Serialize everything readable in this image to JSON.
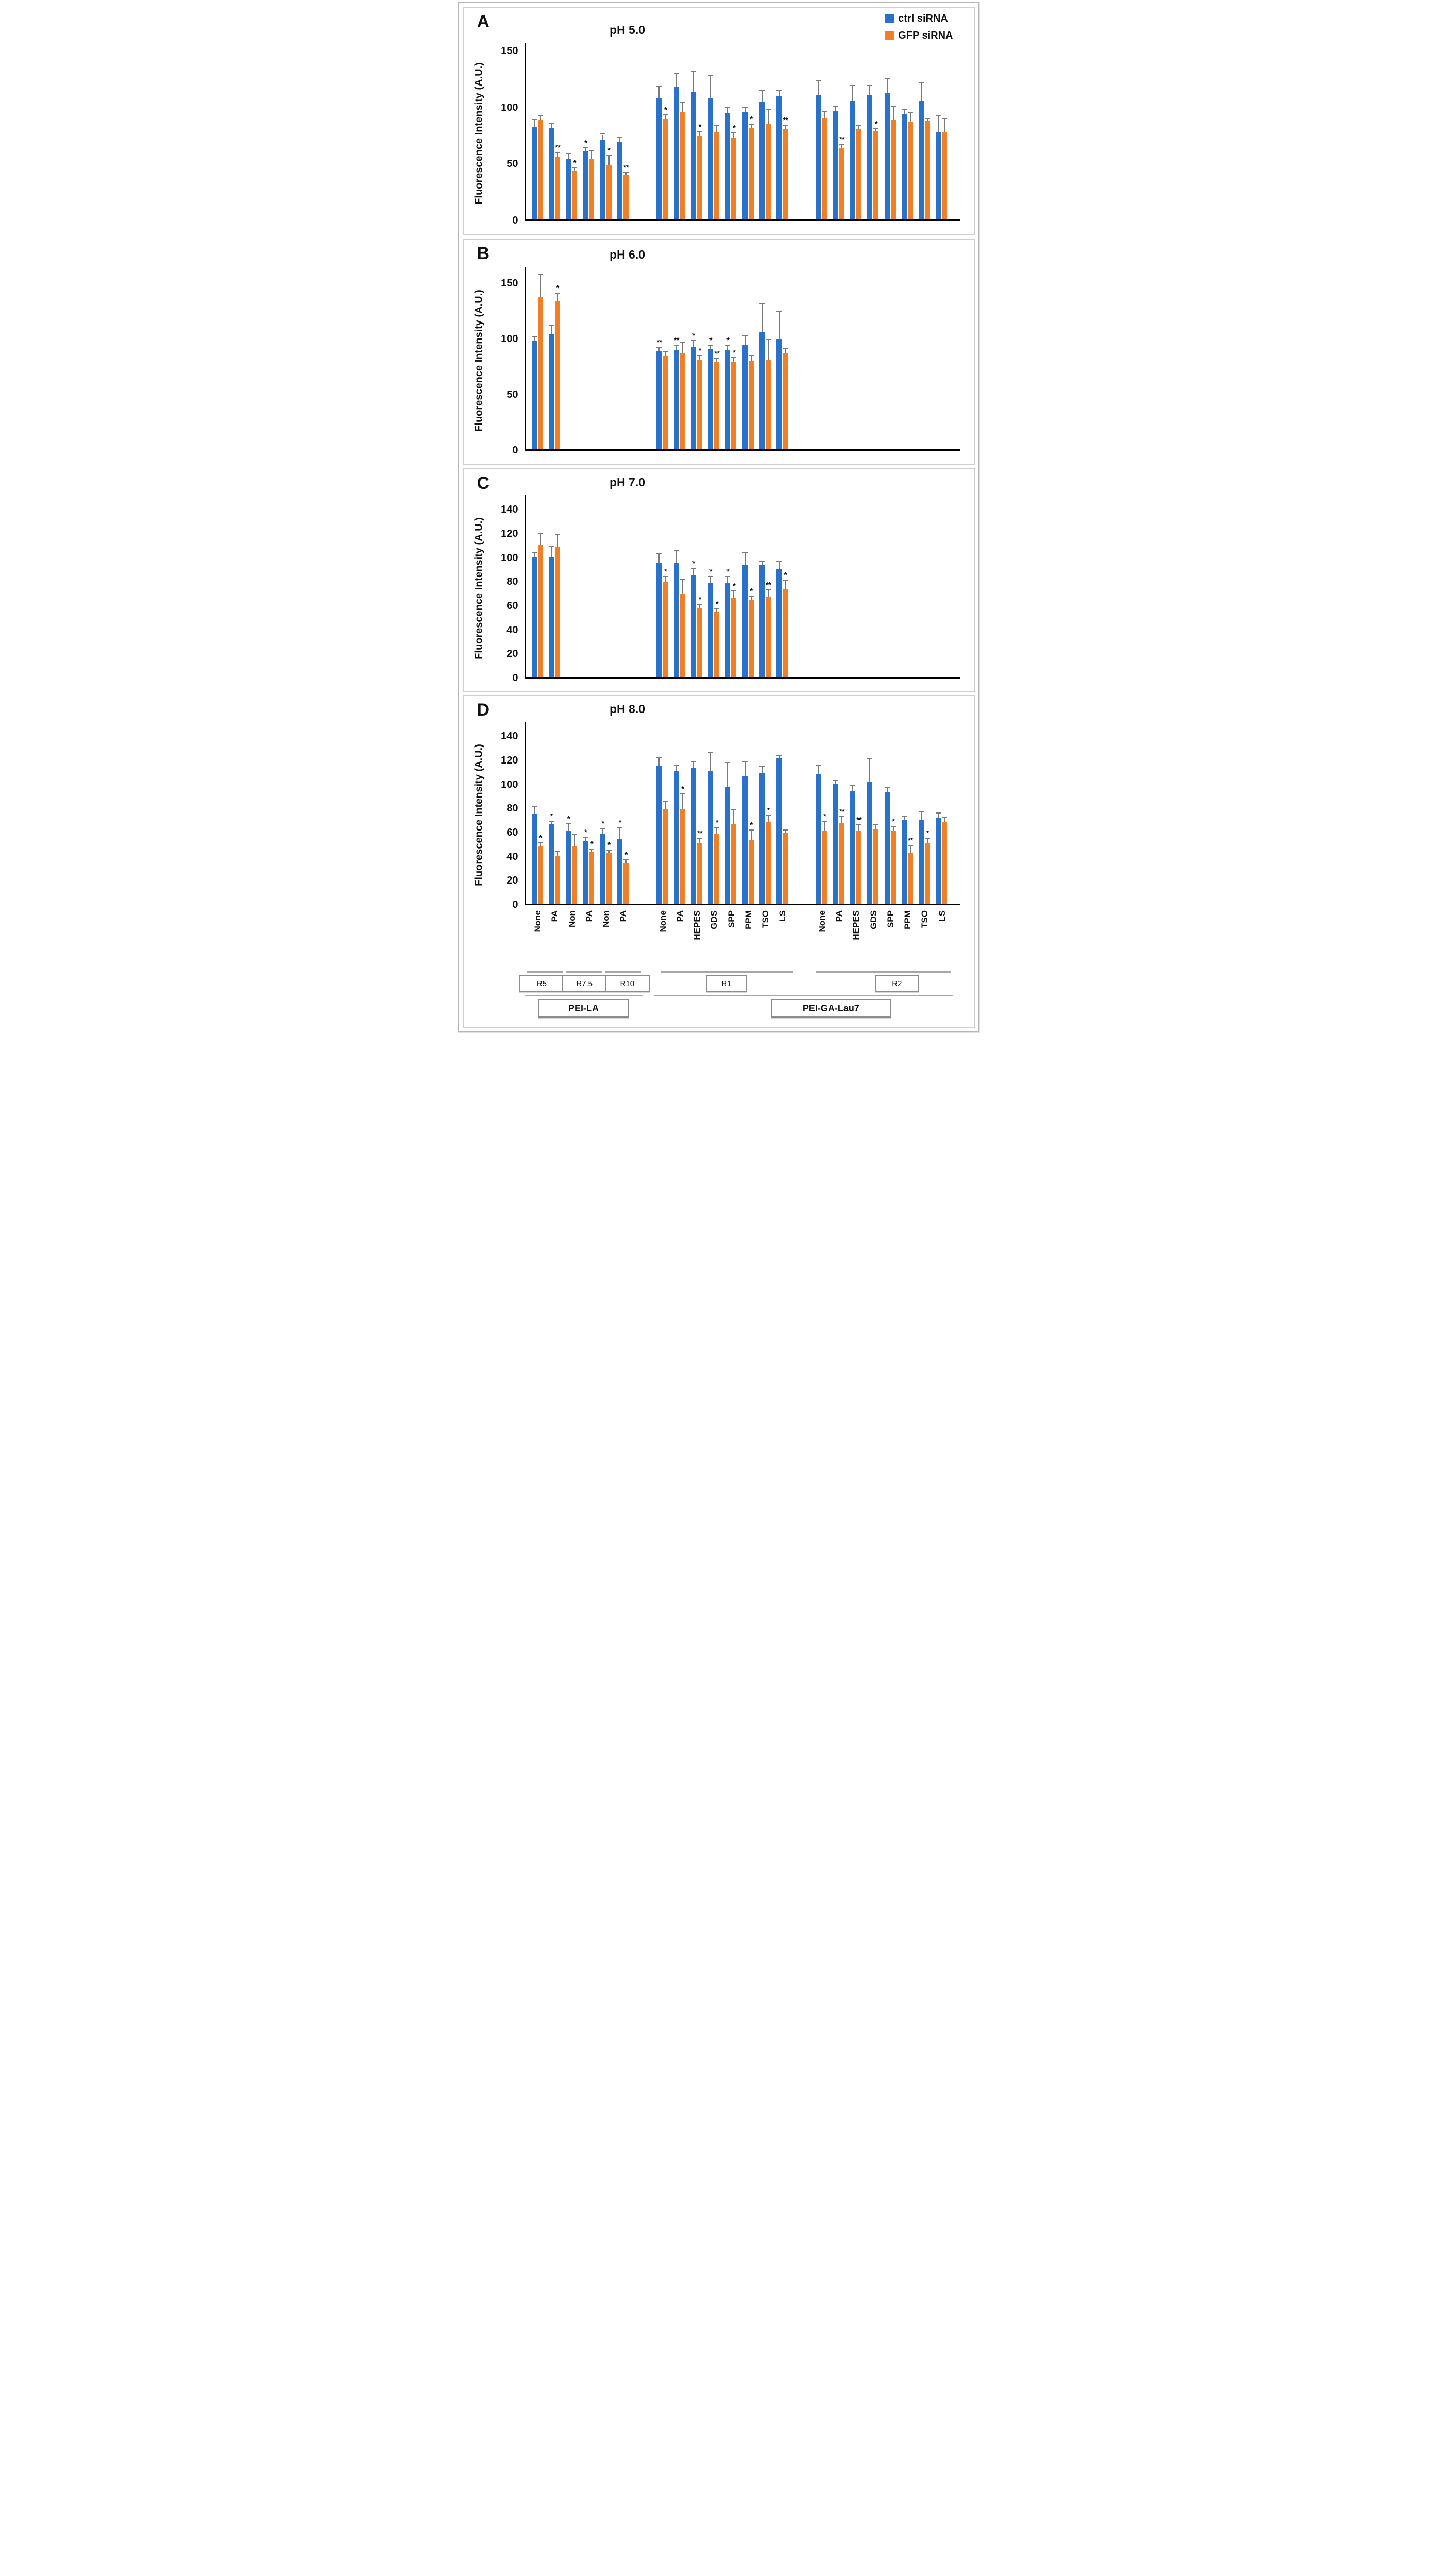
{
  "figure": {
    "description_visible_text_only": true
  },
  "legend": {
    "items": [
      {
        "label": "ctrl siRNA",
        "color": "#2a71c9"
      },
      {
        "label": "GFP siRNA",
        "color": "#f07f27"
      }
    ]
  },
  "colors": {
    "ctrl": "#2a71c9",
    "gfp": "#f07f27",
    "error_bar": "#7a7a7a",
    "axis": "#000000",
    "annotation_line": "#a6a6a6"
  },
  "chart_data": {
    "type": "bar",
    "grid": false,
    "legend_position": "top-right",
    "series": [
      "ctrl siRNA",
      "GFP siRNA"
    ],
    "ylabel": "Fluorescence Intensity (A.U.)",
    "group_categories": [
      [
        "None",
        "PA",
        "Non",
        "PA",
        "Non",
        "PA"
      ],
      [
        "None",
        "PA",
        "HEPES",
        "GDS",
        "SPP",
        "PPM",
        "TSO",
        "LS"
      ],
      [
        "None",
        "PA",
        "HEPES",
        "GDS",
        "SPP",
        "PPM",
        "TSO",
        "LS"
      ]
    ],
    "panels": [
      {
        "panel_letter": "A",
        "title": "pH 5.0",
        "ymax": 155,
        "yticks": [
          0,
          50,
          100,
          150
        ],
        "groups": [
          {
            "ctrl": {
              "values": [
                82,
                81,
                54,
                60,
                70,
                69
              ],
              "errors": [
                6,
                4,
                4,
                3,
                5,
                3
              ],
              "sig": [
                "",
                "",
                "",
                "*",
                "",
                ""
              ]
            },
            "gfp": {
              "values": [
                88,
                55,
                43,
                54,
                48,
                39
              ],
              "errors": [
                3,
                4,
                2,
                6,
                8,
                2
              ],
              "sig": [
                "",
                "**",
                "*",
                "",
                "*",
                "**"
              ]
            }
          },
          {
            "ctrl": {
              "values": [
                107,
                117,
                113,
                107,
                94,
                95,
                104,
                109
              ],
              "errors": [
                10,
                12,
                18,
                20,
                5,
                4,
                10,
                5
              ],
              "sig": [
                "",
                "",
                "",
                "",
                "",
                "",
                "",
                ""
              ]
            },
            "gfp": {
              "values": [
                89,
                95,
                74,
                77,
                72,
                81,
                85,
                80
              ],
              "errors": [
                3,
                8,
                3,
                6,
                4,
                3,
                12,
                3
              ],
              "sig": [
                "*",
                "",
                "*",
                "",
                "*",
                "*",
                "",
                "**"
              ]
            }
          },
          {
            "ctrl": {
              "values": [
                110,
                96,
                105,
                110,
                112,
                93,
                105,
                77
              ],
              "errors": [
                12,
                4,
                13,
                8,
                12,
                4,
                16,
                14
              ],
              "sig": [
                "",
                "",
                "",
                "",
                "",
                "",
                "",
                ""
              ]
            },
            "gfp": {
              "values": [
                90,
                63,
                80,
                78,
                88,
                86,
                87,
                77
              ],
              "errors": [
                5,
                3,
                3,
                2,
                12,
                8,
                2,
                12
              ],
              "sig": [
                "",
                "**",
                "",
                "*",
                "",
                "",
                "",
                ""
              ]
            }
          }
        ]
      },
      {
        "panel_letter": "B",
        "title": "pH 6.0",
        "ymax": 162,
        "yticks": [
          0,
          50,
          100,
          150
        ],
        "groups": [
          {
            "ctrl": {
              "values": [
                97,
                103
              ],
              "errors": [
                4,
                8
              ],
              "sig": [
                "",
                ""
              ]
            },
            "gfp": {
              "values": [
                137,
                133
              ],
              "errors": [
                20,
                7
              ],
              "sig": [
                "",
                "*"
              ]
            }
          },
          {
            "ctrl": {
              "values": [
                88,
                89,
                92,
                90,
                89,
                94,
                105,
                99
              ],
              "errors": [
                3,
                4,
                5,
                3,
                4,
                8,
                25,
                24
              ],
              "sig": [
                "**",
                "**",
                "*",
                "*",
                "*",
                "",
                "",
                ""
              ]
            },
            "gfp": {
              "values": [
                84,
                86,
                80,
                78,
                78,
                79,
                80,
                86
              ],
              "errors": [
                3,
                10,
                4,
                3,
                4,
                5,
                18,
                4
              ],
              "sig": [
                "",
                "",
                "*",
                "**",
                "*",
                "",
                "",
                ""
              ]
            }
          },
          {
            "ctrl": {
              "values": [],
              "errors": [],
              "sig": []
            },
            "gfp": {
              "values": [],
              "errors": [],
              "sig": []
            }
          }
        ]
      },
      {
        "panel_letter": "C",
        "title": "pH 7.0",
        "ymax": 150,
        "yticks": [
          0,
          20,
          40,
          60,
          80,
          100,
          120,
          140
        ],
        "groups": [
          {
            "ctrl": {
              "values": [
                100,
                100
              ],
              "errors": [
                3,
                8
              ],
              "sig": [
                "",
                ""
              ]
            },
            "gfp": {
              "values": [
                110,
                108
              ],
              "errors": [
                9,
                10
              ],
              "sig": [
                "",
                ""
              ]
            }
          },
          {
            "ctrl": {
              "values": [
                95,
                95,
                85,
                78,
                78,
                93,
                93,
                90
              ],
              "errors": [
                7,
                10,
                5,
                5,
                5,
                10,
                3,
                6
              ],
              "sig": [
                "",
                "",
                "*",
                "*",
                "*",
                "",
                "",
                ""
              ]
            },
            "gfp": {
              "values": [
                79,
                69,
                57,
                54,
                66,
                64,
                67,
                73
              ],
              "errors": [
                4,
                12,
                3,
                2,
                5,
                3,
                5,
                7
              ],
              "sig": [
                "*",
                "",
                "*",
                "*",
                "*",
                "*",
                "**",
                "*"
              ]
            }
          },
          {
            "ctrl": {
              "values": [],
              "errors": [],
              "sig": []
            },
            "gfp": {
              "values": [],
              "errors": [],
              "sig": []
            }
          }
        ]
      },
      {
        "panel_letter": "D",
        "title": "pH 8.0",
        "ymax": 150,
        "yticks": [
          0,
          20,
          40,
          60,
          80,
          100,
          120,
          140
        ],
        "groups": [
          {
            "ctrl": {
              "values": [
                75,
                66,
                61,
                52,
                58,
                54
              ],
              "errors": [
                5,
                2,
                5,
                3,
                4,
                9
              ],
              "sig": [
                "",
                "*",
                "*",
                "*",
                "*",
                "*"
              ]
            },
            "gfp": {
              "values": [
                48,
                40,
                48,
                43,
                42,
                34
              ],
              "errors": [
                2,
                3,
                9,
                2,
                2,
                2
              ],
              "sig": [
                "*",
                "",
                "",
                "*",
                "*",
                "*"
              ]
            }
          },
          {
            "ctrl": {
              "values": [
                115,
                110,
                113,
                110,
                97,
                106,
                109,
                121
              ],
              "errors": [
                6,
                5,
                5,
                15,
                20,
                12,
                5,
                2
              ],
              "sig": [
                "",
                "",
                "",
                "",
                "",
                "",
                "",
                ""
              ]
            },
            "gfp": {
              "values": [
                79,
                79,
                50,
                58,
                66,
                53,
                68,
                59
              ],
              "errors": [
                6,
                12,
                4,
                5,
                12,
                8,
                5,
                2
              ],
              "sig": [
                "",
                "*",
                "**",
                "*",
                "",
                "*",
                "*",
                ""
              ]
            }
          },
          {
            "ctrl": {
              "values": [
                108,
                100,
                94,
                101,
                93,
                70,
                70,
                71
              ],
              "errors": [
                7,
                2,
                4,
                19,
                3,
                2,
                6,
                4
              ],
              "sig": [
                "",
                "",
                "",
                "",
                "",
                "",
                "",
                ""
              ]
            },
            "gfp": {
              "values": [
                61,
                67,
                61,
                62,
                61,
                42,
                50,
                68
              ],
              "errors": [
                7,
                5,
                4,
                3,
                3,
                6,
                4,
                3
              ],
              "sig": [
                "*",
                "**",
                "**",
                "",
                "*",
                "**",
                "*",
                ""
              ]
            }
          }
        ]
      }
    ],
    "annotations": {
      "ratio_boxes": [
        "R5",
        "R7.5",
        "R10",
        "R1",
        "R2"
      ],
      "polymer_boxes": [
        "PEI-LA",
        "PEI-GA-Lau7"
      ]
    }
  }
}
